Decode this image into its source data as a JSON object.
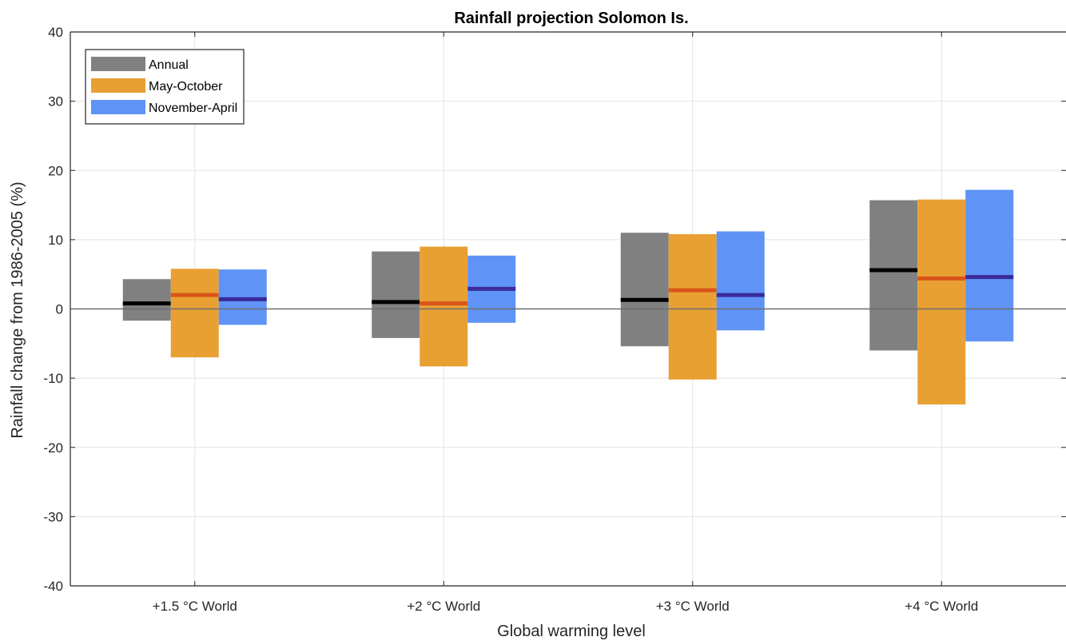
{
  "chart_data": {
    "type": "bar",
    "title": "Rainfall projection Solomon Is.",
    "xlabel": "Global warming level",
    "ylabel": "Rainfall change from 1986-2005 (%)",
    "ylim": [
      -40,
      40
    ],
    "yticks": [
      -40,
      -30,
      -20,
      -10,
      0,
      10,
      20,
      30,
      40
    ],
    "grid": true,
    "legend_position": "top-left",
    "zero_line": true,
    "categories": [
      "+1.5 °C World",
      "+2 °C World",
      "+3 °C World",
      "+4 °C World"
    ],
    "series": [
      {
        "name": "Annual",
        "color": "#808080",
        "median_color": "#000000",
        "low": [
          -1.7,
          -4.2,
          -5.4,
          -6.0
        ],
        "high": [
          4.3,
          8.3,
          11.0,
          15.7
        ],
        "median": [
          0.8,
          1.0,
          1.3,
          5.6
        ]
      },
      {
        "name": "May-October",
        "color": "#E8A033",
        "median_color": "#D9541A",
        "low": [
          -7.0,
          -8.3,
          -10.2,
          -13.8
        ],
        "high": [
          5.8,
          9.0,
          10.8,
          15.8
        ],
        "median": [
          2.0,
          0.8,
          2.7,
          4.4
        ]
      },
      {
        "name": "November-April",
        "color": "#5F93F5",
        "median_color": "#3A2A9A",
        "low": [
          -2.3,
          -2.0,
          -3.1,
          -4.7
        ],
        "high": [
          5.7,
          7.7,
          11.2,
          17.2
        ],
        "median": [
          1.4,
          2.9,
          2.0,
          4.6
        ]
      }
    ]
  }
}
